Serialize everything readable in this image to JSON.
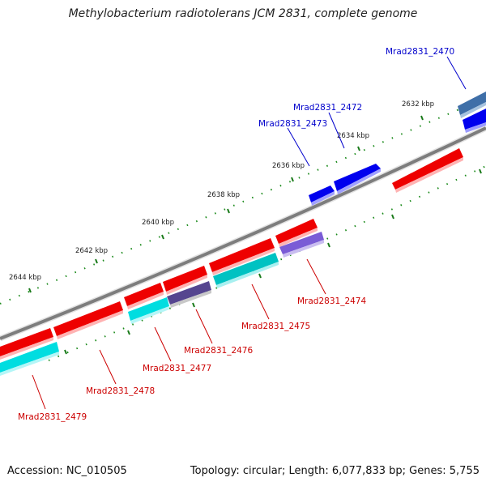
{
  "title": "Methylobacterium radiotolerans JCM 2831, complete genome",
  "footer": {
    "accession": "Accession: NC_010505",
    "summary": "Topology: circular; Length: 6,077,833 bp; Genes: 5,755"
  },
  "ticks": [
    "2632 kbp",
    "2634 kbp",
    "2636 kbp",
    "2638 kbp",
    "2640 kbp",
    "2642 kbp",
    "2644 kbp"
  ],
  "labels": [
    {
      "text": "Mrad2831_2470",
      "color": "#0000cc"
    },
    {
      "text": "Mrad2831_2472",
      "color": "#0000cc"
    },
    {
      "text": "Mrad2831_2473",
      "color": "#0000cc"
    },
    {
      "text": "Mrad2831_2474",
      "color": "#cc0000"
    },
    {
      "text": "Mrad2831_2475",
      "color": "#cc0000"
    },
    {
      "text": "Mrad2831_2476",
      "color": "#cc0000"
    },
    {
      "text": "Mrad2831_2477",
      "color": "#cc0000"
    },
    {
      "text": "Mrad2831_2478",
      "color": "#cc0000"
    },
    {
      "text": "Mrad2831_2479",
      "color": "#cc0000"
    }
  ],
  "colors": {
    "forward": "#ee0000",
    "reverse": "#0000ee",
    "cyan": "#00dde0",
    "teal": "#00c2c2",
    "purple": "#7a5cd6",
    "navy": "#55458f",
    "steel": "#3f6fa8",
    "backbone": "#8a8a8a",
    "tick": "#1a7a1a"
  }
}
